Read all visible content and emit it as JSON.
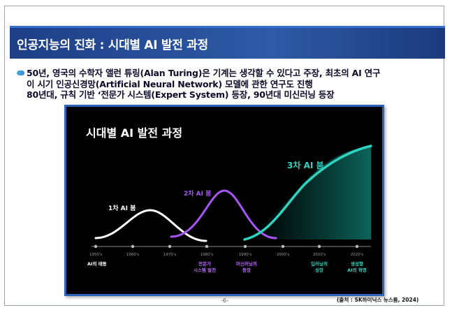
{
  "slide": {
    "title": "인공지능의 진화 : 시대별 AI 발전 과정",
    "bullet_lines": [
      "50년, 영국의 수학자 앨런 튜링(Alan Turing)은 기계는 생각할 수 있다고 주장, 최초의 AI 연구",
      "이 시기 인공신경망(Artificial Neural Network) 모델에 관한 연구도 진행",
      "80년대, 규칙 기반 ‘전문가 시스템(Expert System) 등장, 90년대 미신러닝 등장"
    ],
    "page_number": "-6-",
    "source": "(출처 : SK하이닉스 뉴스룸, 2024)"
  },
  "figure": {
    "title": "시대별 AI 발전 과정",
    "decades": [
      "1950's",
      "1960's",
      "1970's",
      "1980's",
      "1990's",
      "2000's",
      "2010's",
      "2020's"
    ],
    "booms": [
      {
        "label": "1차 AI 붐",
        "color": "#ffffff"
      },
      {
        "label": "2차 AI 붐",
        "color": "#a855f7"
      },
      {
        "label": "3차 AI 붐",
        "color": "#2dd4bf"
      }
    ],
    "milestones": [
      {
        "label": "AI의 태동",
        "color": "#ffffff"
      },
      {
        "label": "전문가\n시스템 발전",
        "color": "#b86cf5"
      },
      {
        "label": "머신러닝의\n등장",
        "color": "#b86cf5"
      },
      {
        "label": "딥러닝의\n성장",
        "color": "#2dd4bf"
      },
      {
        "label": "생성형\nAI의 혁명",
        "color": "#2dd4bf"
      }
    ]
  }
}
